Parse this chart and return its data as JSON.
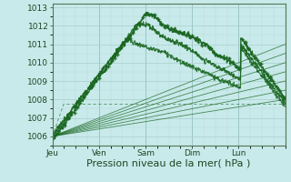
{
  "xlabel": "Pression niveau de la mer( hPa )",
  "background_color": "#c8eaea",
  "grid_color_major": "#a8cece",
  "grid_color_minor": "#b8d8d8",
  "line_color_dark": "#1a6620",
  "line_color_mid": "#2a7a30",
  "ylim": [
    1005.5,
    1013.2
  ],
  "xlim": [
    0,
    120
  ],
  "day_labels": [
    "Jeu",
    "Ven",
    "Sam",
    "Dim",
    "Lun"
  ],
  "day_positions": [
    0,
    24,
    48,
    72,
    96
  ],
  "xlabel_fontsize": 8,
  "tick_fontsize": 6.5,
  "yticks": [
    1006,
    1007,
    1008,
    1009,
    1010,
    1011,
    1012,
    1013
  ]
}
